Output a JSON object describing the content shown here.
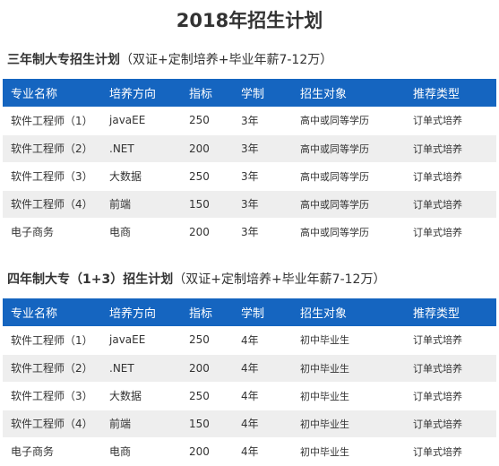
{
  "page": {
    "title": "2018年招生计划"
  },
  "plans": [
    {
      "heading": "三年制大专招生计划",
      "note": "（双证+定制培养+毕业年薪7-12万）",
      "columns": [
        "专业名称",
        "培养方向",
        "指标",
        "学制",
        "招生对象",
        "推荐类型"
      ],
      "rows": [
        [
          "软件工程师（1）",
          "javaEE",
          "250",
          "3年",
          "高中或同等学历",
          "订单式培养"
        ],
        [
          "软件工程师（2）",
          ".NET",
          "200",
          "3年",
          "高中或同等学历",
          "订单式培养"
        ],
        [
          "软件工程师（3）",
          "大数据",
          "250",
          "3年",
          "高中或同等学历",
          "订单式培养"
        ],
        [
          "软件工程师（4）",
          "前端",
          "150",
          "3年",
          "高中或同等学历",
          "订单式培养"
        ],
        [
          "电子商务",
          "电商",
          "200",
          "3年",
          "高中或同等学历",
          "订单式培养"
        ]
      ]
    },
    {
      "heading": "四年制大专（1+3）招生计划",
      "note": "（双证+定制培养+毕业年薪7-12万）",
      "columns": [
        "专业名称",
        "培养方向",
        "指标",
        "学制",
        "招生对象",
        "推荐类型"
      ],
      "rows": [
        [
          "软件工程师（1）",
          "javaEE",
          "250",
          "4年",
          "初中毕业生",
          "订单式培养"
        ],
        [
          "软件工程师（2）",
          ".NET",
          "200",
          "4年",
          "初中毕业生",
          "订单式培养"
        ],
        [
          "软件工程师（3）",
          "大数据",
          "250",
          "4年",
          "初中毕业生",
          "订单式培养"
        ],
        [
          "软件工程师（4）",
          "前端",
          "150",
          "4年",
          "初中毕业生",
          "订单式培养"
        ],
        [
          "电子商务",
          "电商",
          "200",
          "4年",
          "初中毕业生",
          "订单式培养"
        ]
      ]
    }
  ],
  "colors": {
    "header_bg": "#1565c0",
    "row_alt": "#eeeeee",
    "text": "#333333"
  }
}
